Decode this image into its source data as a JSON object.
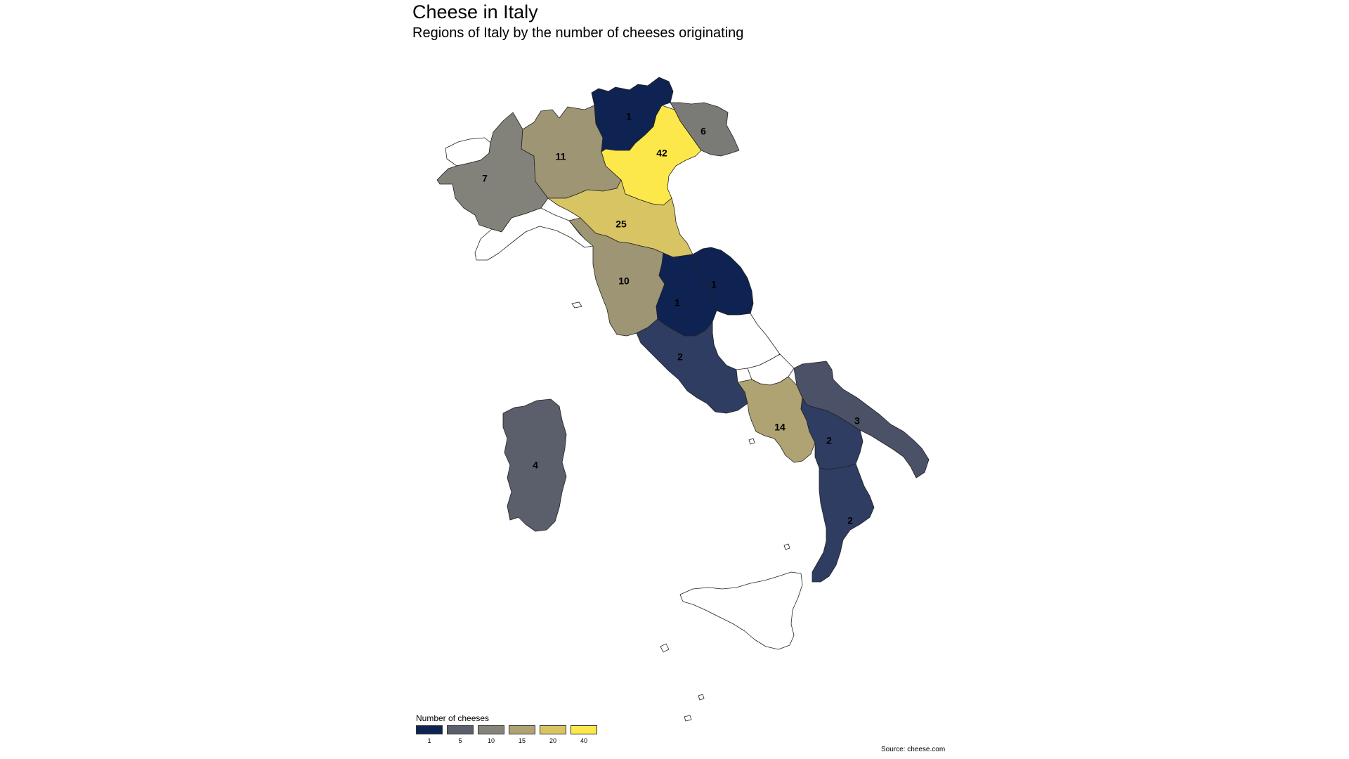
{
  "title": "Cheese in Italy",
  "subtitle": "Regions of Italy by the number of cheeses originating",
  "source": "Source: cheese.com",
  "legend": {
    "title": "Number of cheeses",
    "items": [
      {
        "label": "1",
        "color": "#0f2352"
      },
      {
        "label": "5",
        "color": "#5b5e6b"
      },
      {
        "label": "10",
        "color": "#86847a"
      },
      {
        "label": "15",
        "color": "#afa273"
      },
      {
        "label": "20",
        "color": "#d9c464"
      },
      {
        "label": "40",
        "color": "#fde84b"
      }
    ]
  },
  "regions": [
    {
      "name": "Trentino-Alto Adige",
      "value": "1",
      "color": "#0f2352"
    },
    {
      "name": "Veneto",
      "value": "42",
      "color": "#fde84b"
    },
    {
      "name": "Friuli-Venezia Giulia",
      "value": "6",
      "color": "#7a7a77"
    },
    {
      "name": "Lombardia",
      "value": "11",
      "color": "#9d9574"
    },
    {
      "name": "Piemonte",
      "value": "7",
      "color": "#83827a"
    },
    {
      "name": "Valle d'Aosta",
      "value": "",
      "color": "#ffffff"
    },
    {
      "name": "Liguria",
      "value": "",
      "color": "#ffffff"
    },
    {
      "name": "Emilia-Romagna",
      "value": "25",
      "color": "#d9c464"
    },
    {
      "name": "Toscana",
      "value": "10",
      "color": "#9d9574"
    },
    {
      "name": "Umbria",
      "value": "1",
      "color": "#0f2352"
    },
    {
      "name": "Marche",
      "value": "1",
      "color": "#0f2352"
    },
    {
      "name": "Lazio",
      "value": "2",
      "color": "#2f3d62"
    },
    {
      "name": "Abruzzo",
      "value": "",
      "color": "#ffffff"
    },
    {
      "name": "Molise",
      "value": "",
      "color": "#ffffff"
    },
    {
      "name": "Campania",
      "value": "14",
      "color": "#afa273"
    },
    {
      "name": "Puglia",
      "value": "3",
      "color": "#4b5166"
    },
    {
      "name": "Basilicata",
      "value": "2",
      "color": "#2f3d62"
    },
    {
      "name": "Calabria",
      "value": "2",
      "color": "#2f3d62"
    },
    {
      "name": "Sardegna",
      "value": "4",
      "color": "#5b5e6b"
    },
    {
      "name": "Sicilia",
      "value": "",
      "color": "#ffffff"
    }
  ]
}
